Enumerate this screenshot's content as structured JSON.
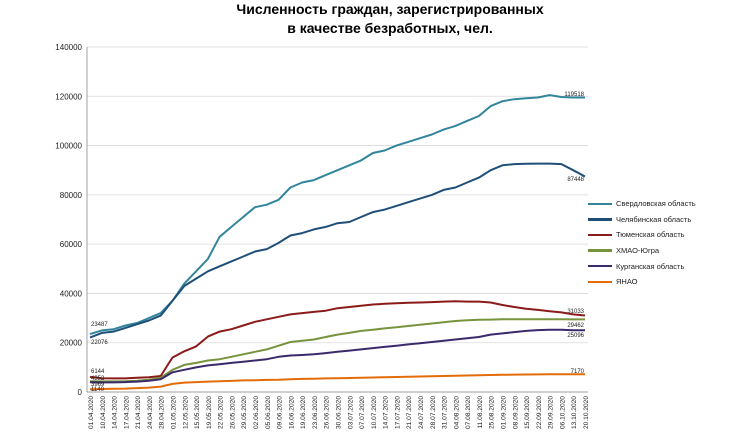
{
  "chart_data": {
    "type": "line",
    "title_line1": "Численность граждан, зарегистрированных",
    "title_line2": "в качестве безработных, чел.",
    "ylim": [
      0,
      140000
    ],
    "yticks": [
      0,
      20000,
      40000,
      60000,
      80000,
      100000,
      120000,
      140000
    ],
    "ytick_labels": [
      "0",
      "20000",
      "40000",
      "60000",
      "80000",
      "100000",
      "120000",
      "140000"
    ],
    "x_labels": [
      "01.04.2020",
      "10.04.2020",
      "14.04.2020",
      "17.04.2020",
      "21.04.2020",
      "24.04.2020",
      "28.04.2020",
      "01.05.2020",
      "12.05.2020",
      "15.05.2020",
      "19.05.2020",
      "22.05.2020",
      "26.05.2020",
      "29.05.2020",
      "02.06.2020",
      "05.06.2020",
      "09.06.2020",
      "16.06.2020",
      "19.06.2020",
      "23.06.2020",
      "26.06.2020",
      "30.06.2020",
      "03.07.2020",
      "07.07.2020",
      "10.07.2020",
      "14.07.2020",
      "17.07.2020",
      "21.07.2020",
      "24.07.2020",
      "28.07.2020",
      "31.07.2020",
      "04.08.2020",
      "07.08.2020",
      "11.08.2020",
      "25.08.2020",
      "01.09.2020",
      "08.09.2020",
      "15.09.2020",
      "22.09.2020",
      "29.09.2020",
      "06.10.2020",
      "13.10.2020",
      "20.10.2020"
    ],
    "series": [
      {
        "name": "Свердловская область",
        "color": "#31859c",
        "values": [
          23487,
          25000,
          25500,
          27000,
          28000,
          30000,
          32000,
          37000,
          44000,
          49000,
          54000,
          63000,
          67000,
          71000,
          75000,
          76000,
          78000,
          83000,
          85000,
          86000,
          88000,
          90000,
          92000,
          94000,
          97000,
          98000,
          100000,
          101500,
          103000,
          104500,
          106500,
          108000,
          110000,
          112000,
          116000,
          118000,
          118800,
          119200,
          119500,
          120500,
          119700,
          119518,
          119518
        ]
      },
      {
        "name": "Челябинская область",
        "color": "#1f4e79",
        "values": [
          22076,
          24000,
          24500,
          26000,
          27500,
          29000,
          31000,
          37000,
          43000,
          46000,
          49000,
          51000,
          53000,
          55000,
          57000,
          58000,
          60500,
          63500,
          64500,
          66000,
          67000,
          68500,
          69000,
          71000,
          73000,
          74000,
          75500,
          77000,
          78500,
          80000,
          82000,
          83000,
          85000,
          87000,
          90000,
          92000,
          92500,
          92600,
          92700,
          92700,
          92500,
          90000,
          87448
        ]
      },
      {
        "name": "Тюменская область",
        "color": "#8b1a1a",
        "values": [
          6144,
          5600,
          5500,
          5500,
          5800,
          6000,
          6500,
          14000,
          16500,
          18500,
          22500,
          24500,
          25500,
          27000,
          28500,
          29500,
          30500,
          31500,
          32000,
          32500,
          33000,
          34000,
          34500,
          35000,
          35500,
          35800,
          36000,
          36200,
          36300,
          36500,
          36700,
          36800,
          36700,
          36700,
          36300,
          35300,
          34500,
          33800,
          33300,
          32800,
          32300,
          31500,
          31033
        ]
      },
      {
        "name": "ХМАО-Югра",
        "color": "#77933c",
        "values": [
          4352,
          4300,
          4300,
          4400,
          4600,
          5000,
          5800,
          9000,
          11000,
          11800,
          12800,
          13300,
          14300,
          15300,
          16300,
          17300,
          18800,
          20300,
          20800,
          21300,
          22300,
          23300,
          24000,
          24800,
          25300,
          25800,
          26300,
          26800,
          27300,
          27800,
          28300,
          28800,
          29100,
          29300,
          29400,
          29500,
          29500,
          29500,
          29500,
          29500,
          29500,
          29462,
          29462
        ]
      },
      {
        "name": "Курганская область",
        "color": "#3b2a6b",
        "values": [
          3969,
          3900,
          3900,
          4000,
          4200,
          4600,
          5200,
          8000,
          9000,
          10000,
          10800,
          11300,
          11800,
          12300,
          12800,
          13300,
          14300,
          14800,
          15000,
          15300,
          15800,
          16300,
          16800,
          17300,
          17800,
          18300,
          18800,
          19300,
          19800,
          20300,
          20800,
          21300,
          21800,
          22300,
          23300,
          23800,
          24300,
          24800,
          25100,
          25300,
          25300,
          25096,
          25096
        ]
      },
      {
        "name": "ЯНАО",
        "color": "#e36c09",
        "values": [
          1140,
          1200,
          1300,
          1400,
          1600,
          1800,
          2200,
          3300,
          3800,
          4000,
          4200,
          4400,
          4500,
          4700,
          4800,
          4900,
          5000,
          5200,
          5300,
          5400,
          5500,
          5600,
          5700,
          5800,
          5900,
          6000,
          6100,
          6200,
          6300,
          6400,
          6500,
          6600,
          6700,
          6800,
          6900,
          7000,
          7050,
          7100,
          7150,
          7170,
          7170,
          7170,
          7170
        ]
      }
    ],
    "annotations_start": [
      "23487",
      "22076",
      "6144",
      "4352",
      "3969",
      "1140"
    ],
    "annotations_end": [
      "119518",
      "87448",
      "31033",
      "29462",
      "25096",
      "7170"
    ],
    "grid": true,
    "legend_position": "right"
  }
}
